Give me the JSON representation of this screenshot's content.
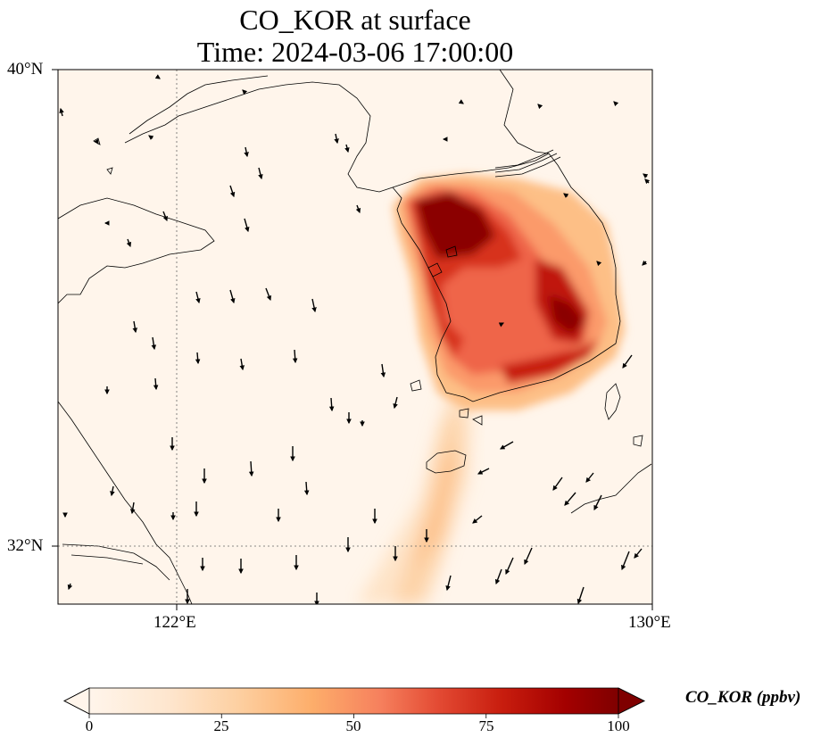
{
  "title": {
    "line1": "CO_KOR at surface",
    "line2": "Time: 2024-03-06 17:00:00"
  },
  "map": {
    "lon_range": [
      120.5,
      130
    ],
    "lat_range": [
      31,
      40
    ],
    "lon_ticks": [
      {
        "value": 122,
        "label": "122°E"
      },
      {
        "value": 130,
        "label": "130°E"
      }
    ],
    "lat_ticks": [
      {
        "value": 40,
        "label": "40°N"
      },
      {
        "value": 32,
        "label": "32°N"
      }
    ],
    "gridlines": "dotted at 122°E and 32°N",
    "variable": "CO_KOR",
    "units": "ppbv",
    "plume_note": "high concentrations over the Korean Peninsula, plume extending southwest over the Yellow Sea"
  },
  "colorbar": {
    "label": "CO_KOR (ppbv)",
    "min": 0,
    "max": 100,
    "ticks": [
      0,
      25,
      50,
      75,
      100
    ],
    "colormap": [
      "#fff5eb",
      "#fee6ce",
      "#fdd0a2",
      "#fdae6b",
      "#fd8d3c",
      "#f16913",
      "#d94801",
      "#a63603",
      "#7f2704"
    ],
    "extend": "both"
  },
  "colors": {
    "background_sea_land": "#fff5eb",
    "coastline": "#000000",
    "arrows": "#000000"
  }
}
